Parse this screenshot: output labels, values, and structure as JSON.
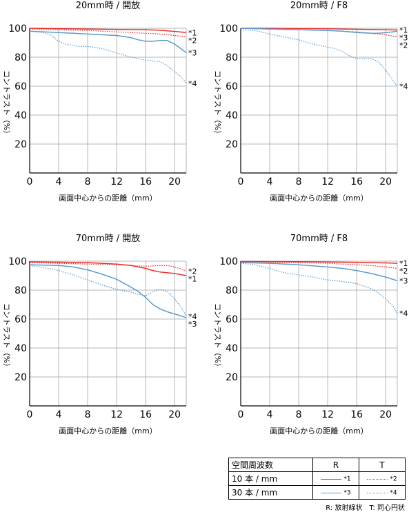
{
  "colors": {
    "red": "#e8302e",
    "blue": "#5b9bcf"
  },
  "chart_data": [
    {
      "type": "line",
      "title": "20mm時 / 開放",
      "xlabel": "画面中心からの距離（mm）",
      "ylabel": "コントラスト（%）",
      "xlim": [
        0,
        21.6
      ],
      "ylim": [
        0,
        100
      ],
      "xticks": [
        0,
        4,
        8,
        12,
        16,
        20
      ],
      "yticks": [
        20,
        40,
        60,
        80,
        100
      ],
      "series": [
        {
          "name": "*1",
          "color": "red",
          "style": "solid",
          "x": [
            0,
            4,
            8,
            12,
            16,
            18,
            20,
            21.6
          ],
          "y": [
            100,
            99.7,
            99.5,
            99.2,
            99,
            98.6,
            97.8,
            97
          ]
        },
        {
          "name": "*2",
          "color": "red",
          "style": "dotted",
          "x": [
            0,
            4,
            8,
            12,
            16,
            18,
            20,
            21.6
          ],
          "y": [
            99.5,
            99,
            98.5,
            97.5,
            96.5,
            96,
            95,
            94
          ]
        },
        {
          "name": "*3",
          "color": "blue",
          "style": "solid",
          "x": [
            0,
            2,
            4,
            6,
            8,
            10,
            12,
            14,
            15,
            16,
            17,
            18,
            19,
            20,
            21,
            21.6
          ],
          "y": [
            98,
            97.5,
            97,
            96.5,
            96,
            95.5,
            95,
            93.5,
            92,
            91,
            91,
            91.5,
            91.5,
            89,
            85.5,
            83
          ]
        },
        {
          "name": "*4",
          "color": "blue",
          "style": "dotted",
          "x": [
            0,
            2,
            3,
            4,
            5,
            6,
            7,
            8,
            10,
            12,
            13,
            14,
            16,
            18,
            19,
            20,
            21,
            21.6
          ],
          "y": [
            98,
            97,
            95,
            91,
            89,
            88,
            87.5,
            87.5,
            86,
            83,
            81.5,
            80,
            78,
            77,
            74,
            70,
            66,
            62
          ]
        }
      ]
    },
    {
      "type": "line",
      "title": "20mm時 / F8",
      "xlabel": "画面中心からの距離（mm）",
      "ylabel": "コントラスト（%）",
      "xlim": [
        0,
        21.6
      ],
      "ylim": [
        0,
        100
      ],
      "xticks": [
        0,
        4,
        8,
        12,
        16,
        20
      ],
      "yticks": [
        20,
        40,
        60,
        80,
        100
      ],
      "series": [
        {
          "name": "*1",
          "color": "red",
          "style": "solid",
          "x": [
            0,
            4,
            8,
            12,
            16,
            20,
            21.6
          ],
          "y": [
            100,
            100,
            99.8,
            99.6,
            99.3,
            99,
            98.8
          ]
        },
        {
          "name": "*2",
          "color": "red",
          "style": "dotted",
          "x": [
            0,
            4,
            8,
            12,
            16,
            18,
            20,
            21.6
          ],
          "y": [
            100,
            99.5,
            99,
            98.5,
            97.5,
            96.5,
            95.5,
            94
          ]
        },
        {
          "name": "*3",
          "color": "blue",
          "style": "solid",
          "x": [
            0,
            4,
            8,
            12,
            14,
            16,
            18,
            19,
            20,
            21,
            21.6
          ],
          "y": [
            100,
            99.5,
            99,
            98.5,
            98,
            97,
            96.5,
            96.5,
            97,
            97.5,
            98
          ]
        },
        {
          "name": "*4",
          "color": "blue",
          "style": "dotted",
          "x": [
            0,
            2,
            4,
            6,
            8,
            10,
            12,
            13,
            14,
            15,
            16,
            18,
            19,
            20,
            21,
            21.6
          ],
          "y": [
            99,
            98.5,
            96,
            94,
            92,
            89,
            87,
            86,
            84,
            81,
            79,
            79,
            77,
            71,
            64,
            60
          ]
        }
      ]
    },
    {
      "type": "line",
      "title": "70mm時 / 開放",
      "xlabel": "画面中心からの距離（mm）",
      "ylabel": "コントラスト（%）",
      "xlim": [
        0,
        21.6
      ],
      "ylim": [
        0,
        100
      ],
      "xticks": [
        0,
        4,
        8,
        12,
        16,
        20
      ],
      "yticks": [
        20,
        40,
        60,
        80,
        100
      ],
      "series": [
        {
          "name": "*1",
          "color": "red",
          "style": "solid",
          "x": [
            0,
            4,
            8,
            12,
            14,
            16,
            17,
            18,
            20,
            21.6
          ],
          "y": [
            99.5,
            99.3,
            99,
            98,
            97,
            95,
            93.5,
            92.5,
            91.5,
            90
          ]
        },
        {
          "name": "*2",
          "color": "red",
          "style": "dotted",
          "x": [
            0,
            4,
            8,
            12,
            14,
            16,
            18,
            19,
            20,
            21,
            21.6
          ],
          "y": [
            99,
            98.5,
            98,
            97.5,
            97,
            96.5,
            97,
            97,
            96,
            94.5,
            93
          ]
        },
        {
          "name": "*3",
          "color": "blue",
          "style": "solid",
          "x": [
            0,
            4,
            6,
            8,
            10,
            12,
            14,
            15,
            16,
            17,
            18,
            19,
            20,
            21,
            21.6
          ],
          "y": [
            97.5,
            97,
            96,
            94,
            91,
            87.5,
            82,
            79,
            75,
            70,
            67,
            65,
            63.5,
            62,
            61
          ]
        },
        {
          "name": "*4",
          "color": "blue",
          "style": "dotted",
          "x": [
            0,
            2,
            4,
            6,
            8,
            10,
            12,
            14,
            16,
            17,
            18,
            19,
            20,
            21,
            21.6
          ],
          "y": [
            97,
            95.5,
            93.5,
            90.5,
            87,
            83.5,
            80.5,
            78.5,
            76,
            79,
            80.5,
            79,
            74,
            67.5,
            62
          ]
        }
      ]
    },
    {
      "type": "line",
      "title": "70mm時 / F8",
      "xlabel": "画面中心からの距離（mm）",
      "ylabel": "コントラスト（%）",
      "xlim": [
        0,
        21.6
      ],
      "ylim": [
        0,
        100
      ],
      "xticks": [
        0,
        4,
        8,
        12,
        16,
        20
      ],
      "yticks": [
        20,
        40,
        60,
        80,
        100
      ],
      "series": [
        {
          "name": "*1",
          "color": "red",
          "style": "solid",
          "x": [
            0,
            4,
            8,
            12,
            16,
            20,
            21.6
          ],
          "y": [
            99.8,
            99.7,
            99.6,
            99.4,
            99.2,
            98.8,
            98.5
          ]
        },
        {
          "name": "*2",
          "color": "red",
          "style": "dotted",
          "x": [
            0,
            4,
            8,
            12,
            16,
            18,
            20,
            21.6
          ],
          "y": [
            99.5,
            99.2,
            99,
            98.5,
            97.5,
            97,
            96,
            95
          ]
        },
        {
          "name": "*3",
          "color": "blue",
          "style": "solid",
          "x": [
            0,
            4,
            8,
            12,
            14,
            16,
            18,
            20,
            21.6
          ],
          "y": [
            99,
            98.5,
            97.5,
            96,
            95,
            93.5,
            91.5,
            89,
            86.5
          ]
        },
        {
          "name": "*4",
          "color": "blue",
          "style": "dotted",
          "x": [
            0,
            2,
            4,
            6,
            8,
            10,
            12,
            14,
            16,
            18,
            19,
            20,
            21,
            21.6
          ],
          "y": [
            98.5,
            97.5,
            95,
            92,
            90.5,
            89,
            87,
            86,
            84.5,
            81,
            78,
            74,
            69,
            64
          ]
        }
      ]
    }
  ],
  "legend": {
    "header": "空間周波数",
    "col_r": "R",
    "col_t": "T",
    "rows": [
      {
        "label": "10 本 / mm",
        "r_ref": "*1",
        "t_ref": "*2",
        "color": "red"
      },
      {
        "label": "30 本 / mm",
        "r_ref": "*3",
        "t_ref": "*4",
        "color": "blue"
      }
    ]
  },
  "footnote": "R: 放射線状　T: 同心円状"
}
